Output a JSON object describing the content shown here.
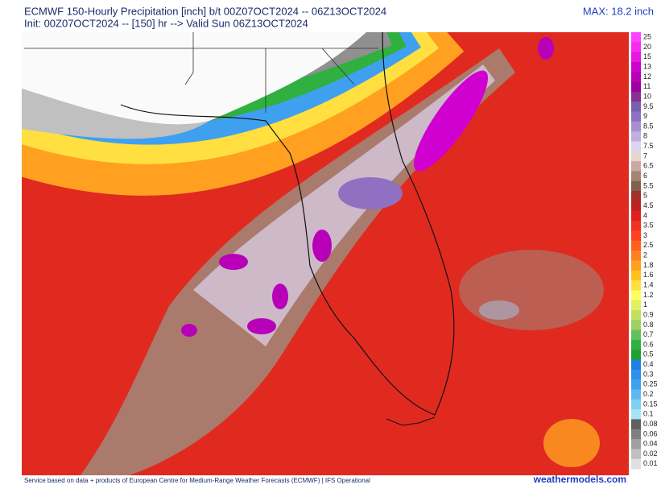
{
  "header": {
    "title": "ECMWF 150-Hourly Precipitation [inch] b/t 00Z07OCT2024 -- 06Z13OCT2024",
    "subtitle": "Init: 00Z07OCT2024 -- [150] hr --> Valid Sun 06Z13OCT2024",
    "max": "MAX: 18.2 inch"
  },
  "legend": {
    "items": [
      {
        "label": "25",
        "color": "#ff40ff"
      },
      {
        "label": "20",
        "color": "#f82cf0"
      },
      {
        "label": "15",
        "color": "#e818e0"
      },
      {
        "label": "13",
        "color": "#d000d0"
      },
      {
        "label": "12",
        "color": "#b800b8"
      },
      {
        "label": "11",
        "color": "#a000a0"
      },
      {
        "label": "10",
        "color": "#883090"
      },
      {
        "label": "9.5",
        "color": "#7860b0"
      },
      {
        "label": "9",
        "color": "#9070c0"
      },
      {
        "label": "8.5",
        "color": "#a890d0"
      },
      {
        "label": "8",
        "color": "#c0b0e0"
      },
      {
        "label": "7.5",
        "color": "#dcd4f0"
      },
      {
        "label": "7",
        "color": "#e6d6d2"
      },
      {
        "label": "6.5",
        "color": "#c8aaa2"
      },
      {
        "label": "6",
        "color": "#a48474"
      },
      {
        "label": "5.5",
        "color": "#806050"
      },
      {
        "label": "5",
        "color": "#a03028"
      },
      {
        "label": "4.5",
        "color": "#c02020"
      },
      {
        "label": "4",
        "color": "#e02020"
      },
      {
        "label": "3.5",
        "color": "#f03020"
      },
      {
        "label": "3",
        "color": "#ff4020"
      },
      {
        "label": "2.5",
        "color": "#ff6020"
      },
      {
        "label": "2",
        "color": "#ff8020"
      },
      {
        "label": "1.8",
        "color": "#ffa020"
      },
      {
        "label": "1.6",
        "color": "#ffc020"
      },
      {
        "label": "1.4",
        "color": "#ffe040"
      },
      {
        "label": "1.2",
        "color": "#ffff60"
      },
      {
        "label": "1",
        "color": "#e0f060"
      },
      {
        "label": "0.9",
        "color": "#c0e060"
      },
      {
        "label": "0.8",
        "color": "#a0d060"
      },
      {
        "label": "0.7",
        "color": "#60c060"
      },
      {
        "label": "0.6",
        "color": "#30b040"
      },
      {
        "label": "0.5",
        "color": "#20a030"
      },
      {
        "label": "0.4",
        "color": "#2080e0"
      },
      {
        "label": "0.3",
        "color": "#3090f0"
      },
      {
        "label": "0.25",
        "color": "#40a0f0"
      },
      {
        "label": "0.2",
        "color": "#60b8f0"
      },
      {
        "label": "0.15",
        "color": "#80d0f0"
      },
      {
        "label": "0.1",
        "color": "#a8e4f4"
      },
      {
        "label": "0.08",
        "color": "#606060"
      },
      {
        "label": "0.06",
        "color": "#808080"
      },
      {
        "label": "0.04",
        "color": "#a0a0a0"
      },
      {
        "label": "0.02",
        "color": "#c0c0c0"
      },
      {
        "label": "0.01",
        "color": "#e0e0e0"
      }
    ]
  },
  "footer": {
    "credit": "Service based on data + products of European Centre for Medium-Range Weather Forecasts (ECMWF) | IFS Operational",
    "site": "weathermodels.com"
  }
}
